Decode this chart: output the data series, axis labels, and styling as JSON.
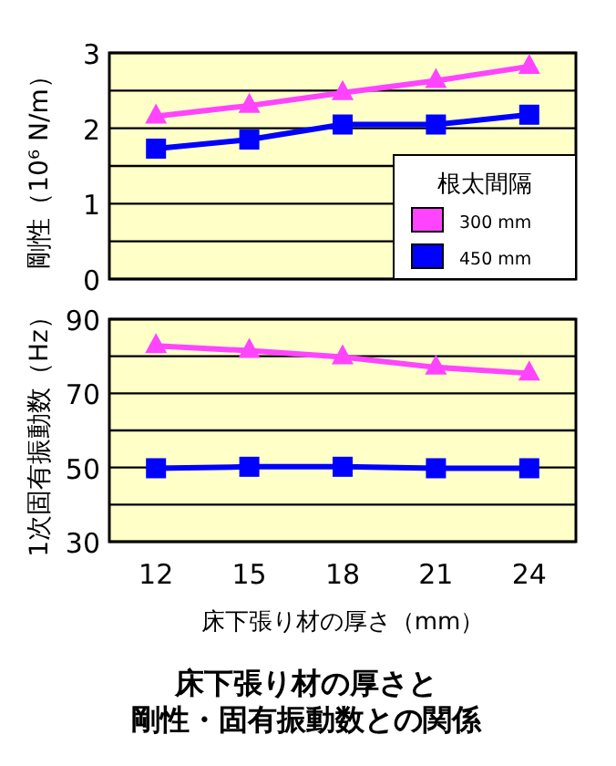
{
  "chart_data": [
    {
      "type": "line",
      "ylabel": "剛性（10⁶ N/m）",
      "categories": [
        null,
        null,
        null,
        null,
        null
      ],
      "ylim": [
        0,
        3
      ],
      "yticks": [
        0,
        {
          "value": 0.5,
          "label": null
        },
        1,
        {
          "value": 1.5,
          "label": null
        },
        2,
        {
          "value": 2.5,
          "label": null
        },
        3
      ],
      "grid": "y",
      "tick_labels": "y",
      "legend": "bottom right",
      "legend_title": "根太間隔",
      "series": [
        {
          "name": "300 mm",
          "color": "#ff44ff",
          "marker": "triangle",
          "values": [
            2.16,
            2.3,
            2.47,
            2.63,
            2.82
          ]
        },
        {
          "name": "450 mm",
          "color": "#0000ff",
          "marker": "square",
          "values": [
            1.73,
            1.85,
            2.05,
            2.05,
            2.18
          ]
        }
      ]
    },
    {
      "type": "line",
      "ylabel": "1次固有振動数（Hz）",
      "xlabel": "床下張り材の厚さ（mm）",
      "title": "床下張り材の厚さと",
      "subtitle": "剛性・固有振動数との関係",
      "categories": [
        "12",
        "15",
        "18",
        "21",
        "24"
      ],
      "ylim": [
        30,
        90
      ],
      "yticks": [
        30,
        {
          "value": 40,
          "label": null
        },
        50,
        {
          "value": 60,
          "label": null
        },
        70,
        {
          "value": 80,
          "label": null
        },
        90
      ],
      "grid": "y",
      "series": [
        {
          "color": "#ff44ff",
          "marker": "triangle",
          "values": [
            82.8,
            81.5,
            79.8,
            77.0,
            75.4
          ]
        },
        {
          "color": "#0000ff",
          "marker": "square",
          "values": [
            49.8,
            50.2,
            50.2,
            49.8,
            49.8
          ]
        }
      ]
    }
  ]
}
